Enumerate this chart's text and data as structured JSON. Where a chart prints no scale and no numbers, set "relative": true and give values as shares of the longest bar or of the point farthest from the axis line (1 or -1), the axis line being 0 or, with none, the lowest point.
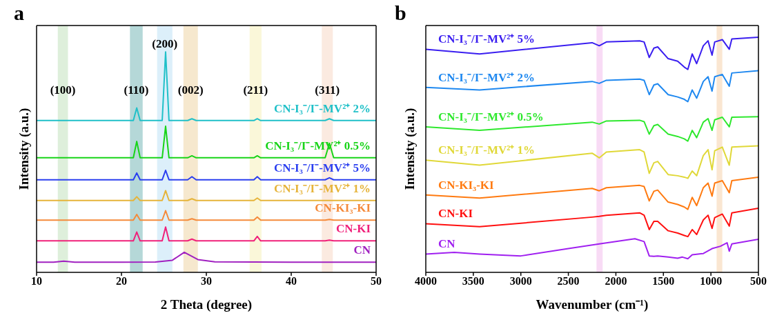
{
  "chart_data": [
    {
      "type": "line",
      "title": "a",
      "xlabel": "2 Theta (degree)",
      "ylabel": "Intensity (a.u.)",
      "relative": true,
      "xlim": [
        10,
        50
      ],
      "xticks": [
        10,
        20,
        30,
        40,
        50
      ],
      "x": [
        10,
        21.4,
        21.8,
        22.2,
        24.8,
        25.2,
        25.6,
        27.8,
        28.3,
        28.8,
        35.6,
        36,
        36.4,
        44,
        44.5,
        45,
        50
      ],
      "series": [
        {
          "name": "CN-I₃⁻/I⁻-MV²⁺ 2%",
          "color": "#1fc0c8",
          "values": [
            0.689,
            0.689,
            0.746,
            0.689,
            0.689,
            1.0,
            0.689,
            0.689,
            0.697,
            0.689,
            0.689,
            0.697,
            0.689,
            0.689,
            0.697,
            0.689,
            0.689
          ]
        },
        {
          "name": "CN-I₃⁻/I⁻-MV²⁺ 0.5%",
          "color": "#17d417",
          "values": [
            0.52,
            0.52,
            0.594,
            0.52,
            0.52,
            0.663,
            0.52,
            0.52,
            0.529,
            0.52,
            0.52,
            0.529,
            0.52,
            0.52,
            0.586,
            0.52,
            0.52
          ]
        },
        {
          "name": "CN-I₃⁻/I⁻-MV²⁺ 5%",
          "color": "#2a3ef0",
          "values": [
            0.42,
            0.42,
            0.451,
            0.42,
            0.42,
            0.463,
            0.42,
            0.42,
            0.434,
            0.42,
            0.42,
            0.434,
            0.42,
            0.42,
            0.429,
            0.42,
            0.42
          ]
        },
        {
          "name": "CN-I₃⁻/I⁻-MV²⁺ 1%",
          "color": "#e6b43a",
          "values": [
            0.326,
            0.326,
            0.343,
            0.326,
            0.326,
            0.371,
            0.326,
            0.326,
            0.334,
            0.326,
            0.326,
            0.337,
            0.326,
            0.326,
            0.326,
            0.326,
            0.326
          ]
        },
        {
          "name": "CN-KI₃-KI",
          "color": "#f58a3a",
          "values": [
            0.237,
            0.237,
            0.263,
            0.237,
            0.237,
            0.28,
            0.237,
            0.237,
            0.243,
            0.237,
            0.237,
            0.251,
            0.237,
            0.237,
            0.24,
            0.237,
            0.237
          ]
        },
        {
          "name": "CN-KI",
          "color": "#f0207a",
          "values": [
            0.143,
            0.143,
            0.183,
            0.143,
            0.143,
            0.206,
            0.143,
            0.143,
            0.151,
            0.143,
            0.143,
            0.163,
            0.143,
            0.143,
            0.146,
            0.143,
            0.143
          ]
        },
        {
          "name": "CN",
          "color": "#a020c0",
          "x": [
            10,
            12,
            13.2,
            14.5,
            20,
            24,
            26,
            27.4,
            29,
            31,
            40,
            50
          ],
          "values": [
            0.046,
            0.046,
            0.051,
            0.046,
            0.046,
            0.047,
            0.055,
            0.091,
            0.058,
            0.048,
            0.046,
            0.046
          ]
        }
      ],
      "bands": [
        {
          "axis": "x",
          "from": 12.5,
          "to": 13.7,
          "color": "#cde6c8",
          "label": "(100)"
        },
        {
          "axis": "x",
          "from": 21,
          "to": 22.5,
          "color": "#8ec3c3",
          "label": "(110)"
        },
        {
          "axis": "x",
          "from": 24.2,
          "to": 26,
          "color": "#c9e6f8",
          "label": "(200)"
        },
        {
          "axis": "x",
          "from": 27.3,
          "to": 29,
          "color": "#f1dcb3",
          "label": "(002)"
        },
        {
          "axis": "x",
          "from": 35.1,
          "to": 36.5,
          "color": "#f7f3c4",
          "label": "(211)"
        },
        {
          "axis": "x",
          "from": 43.6,
          "to": 44.9,
          "color": "#f9dfd0",
          "label": "(311)"
        }
      ]
    },
    {
      "type": "line",
      "title": "b",
      "xlabel": "Wavenumber (cm⁻¹)",
      "ylabel": "Intensity (a.u.)",
      "relative": true,
      "xlim": [
        4000,
        500
      ],
      "xticks": [
        4000,
        3500,
        3000,
        2500,
        2000,
        1500,
        1000,
        500
      ],
      "x": [
        4000,
        3434,
        2250,
        2175,
        2100,
        1750,
        1703,
        1649,
        1600,
        1560,
        1450,
        1350,
        1280,
        1243,
        1197,
        1150,
        1080,
        1030,
        988,
        960,
        880,
        807,
        780,
        500
      ],
      "series": [
        {
          "name": "CN-I₃⁻/I⁻-MV²⁺ 5%",
          "color": "#3a1ef0",
          "values": [
            0.949,
            0.929,
            0.977,
            0.964,
            0.98,
            0.985,
            0.98,
            0.914,
            0.954,
            0.959,
            0.909,
            0.898,
            0.873,
            0.863,
            0.929,
            0.888,
            0.964,
            0.985,
            0.924,
            0.98,
            0.99,
            0.949,
            0.993,
            1.0
          ]
        },
        {
          "name": "CN-I₃⁻/I⁻-MV²⁺ 2%",
          "color": "#1e88f0",
          "values": [
            0.787,
            0.776,
            0.812,
            0.804,
            0.817,
            0.822,
            0.817,
            0.756,
            0.797,
            0.802,
            0.756,
            0.746,
            0.736,
            0.726,
            0.776,
            0.741,
            0.812,
            0.832,
            0.771,
            0.832,
            0.842,
            0.792,
            0.848,
            0.858
          ]
        },
        {
          "name": "CN-I₃⁻/I⁻-MV²⁺ 0.5%",
          "color": "#2ee82e",
          "values": [
            0.619,
            0.604,
            0.639,
            0.631,
            0.644,
            0.647,
            0.641,
            0.588,
            0.624,
            0.629,
            0.588,
            0.578,
            0.568,
            0.558,
            0.604,
            0.573,
            0.639,
            0.654,
            0.604,
            0.649,
            0.66,
            0.619,
            0.66,
            0.662
          ]
        },
        {
          "name": "CN-I₃⁻/I⁻-MV²⁺ 1%",
          "color": "#e0d838",
          "values": [
            0.477,
            0.456,
            0.507,
            0.487,
            0.512,
            0.522,
            0.512,
            0.421,
            0.466,
            0.472,
            0.416,
            0.411,
            0.405,
            0.4,
            0.431,
            0.411,
            0.497,
            0.522,
            0.436,
            0.517,
            0.533,
            0.456,
            0.533,
            0.538
          ]
        },
        {
          "name": "CN-KI₃-KI",
          "color": "#ff7a10",
          "values": [
            0.329,
            0.316,
            0.357,
            0.347,
            0.36,
            0.37,
            0.365,
            0.304,
            0.345,
            0.35,
            0.299,
            0.289,
            0.278,
            0.268,
            0.319,
            0.284,
            0.36,
            0.38,
            0.324,
            0.38,
            0.39,
            0.339,
            0.39,
            0.405
          ]
        },
        {
          "name": "CN-KI",
          "color": "#ff1010",
          "values": [
            0.207,
            0.194,
            0.235,
            0.238,
            0.243,
            0.253,
            0.243,
            0.182,
            0.217,
            0.217,
            0.177,
            0.167,
            0.157,
            0.152,
            0.182,
            0.161,
            0.223,
            0.243,
            0.187,
            0.233,
            0.248,
            0.197,
            0.253,
            0.273
          ]
        },
        {
          "name": "CN",
          "color": "#a020f0",
          "x": [
            4000,
            3700,
            3434,
            3000,
            2500,
            2175,
            2000,
            1800,
            1703,
            1649,
            1600,
            1560,
            1450,
            1350,
            1300,
            1243,
            1197,
            1080,
            988,
            900,
            830,
            807,
            780,
            500
          ],
          "values": [
            0.078,
            0.085,
            0.078,
            0.07,
            0.101,
            0.121,
            0.131,
            0.143,
            0.131,
            0.07,
            0.068,
            0.07,
            0.065,
            0.06,
            0.065,
            0.058,
            0.075,
            0.08,
            0.101,
            0.111,
            0.126,
            0.09,
            0.121,
            0.141
          ]
        }
      ],
      "bands": [
        {
          "axis": "x",
          "from": 2204,
          "to": 2139,
          "color": "#f5c8f0"
        },
        {
          "axis": "x",
          "from": 940,
          "to": 880,
          "color": "#f8d8b8"
        }
      ]
    }
  ]
}
